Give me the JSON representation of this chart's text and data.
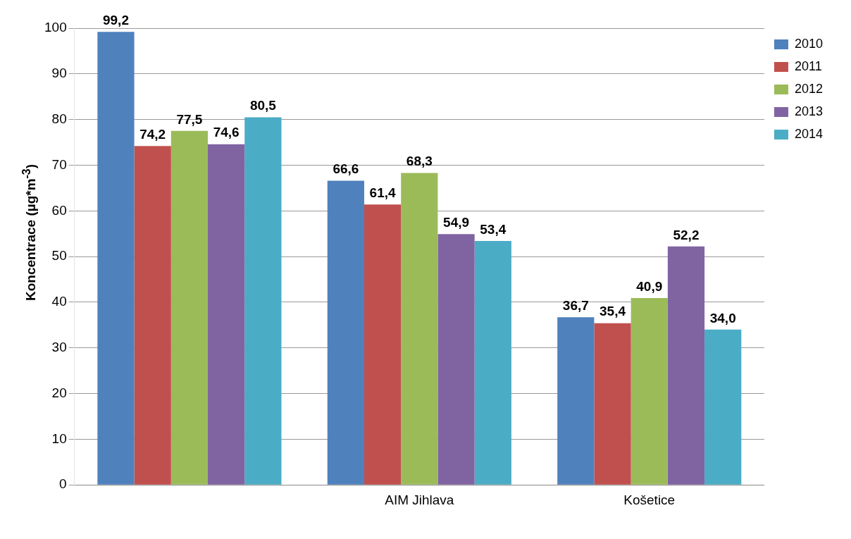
{
  "chart_data": {
    "type": "bar",
    "categories": [
      null,
      "AIM Jihlava",
      "Košetice"
    ],
    "series": [
      {
        "name": "2010",
        "color": "#4f81bd",
        "values": [
          99.2,
          66.6,
          36.7
        ],
        "value_labels": [
          "99,2",
          "66,6",
          "36,7"
        ]
      },
      {
        "name": "2011",
        "color": "#c0504d",
        "values": [
          74.2,
          61.4,
          35.4
        ],
        "value_labels": [
          "74,2",
          "61,4",
          "35,4"
        ]
      },
      {
        "name": "2012",
        "color": "#9bbb59",
        "values": [
          77.5,
          68.3,
          40.9
        ],
        "value_labels": [
          "77,5",
          "68,3",
          "40,9"
        ]
      },
      {
        "name": "2013",
        "color": "#8064a2",
        "values": [
          74.6,
          54.9,
          52.2
        ],
        "value_labels": [
          "74,6",
          "54,9",
          "52,2"
        ]
      },
      {
        "name": "2014",
        "color": "#4bacc6",
        "values": [
          80.5,
          53.4,
          34.0
        ],
        "value_labels": [
          "80,5",
          "53,4",
          "34,0"
        ]
      }
    ],
    "ylabel": "Koncentrace (µg*m$^{-3}$)",
    "ylim": [
      0,
      100
    ],
    "yticks": [
      0,
      10,
      20,
      30,
      40,
      50,
      60,
      70,
      80,
      90,
      100
    ],
    "grid": "y",
    "legend": "top right"
  }
}
